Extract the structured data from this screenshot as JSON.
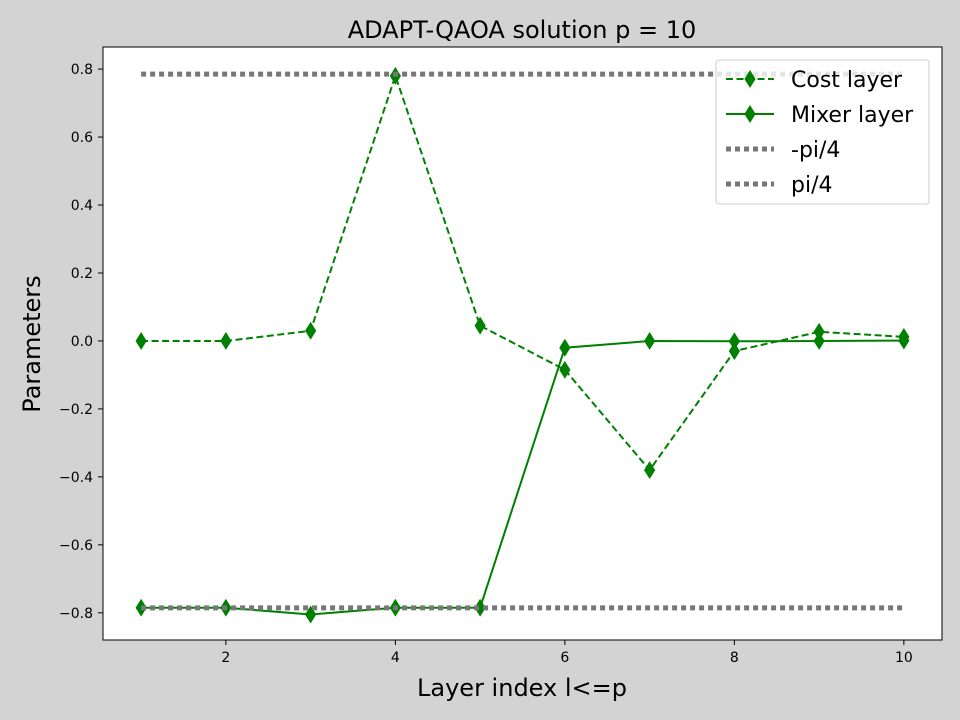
{
  "chart_data": {
    "type": "line",
    "title": "ADAPT-QAOA solution p = 10",
    "xlabel": "Layer index l<=p",
    "ylabel": "Parameters",
    "xlim": [
      0.55,
      10.45
    ],
    "ylim": [
      -0.88,
      0.865
    ],
    "xticks": [
      2,
      4,
      6,
      8,
      10
    ],
    "xtick_labels": [
      "2",
      "4",
      "6",
      "8",
      "10"
    ],
    "yticks": [
      0.8,
      0.6,
      0.4,
      0.2,
      0.0,
      -0.2,
      -0.4,
      -0.6,
      -0.8
    ],
    "ytick_labels": [
      "0.8",
      "0.6",
      "0.4",
      "0.2",
      "0.0",
      "−0.2",
      "−0.4",
      "−0.6",
      "−0.8"
    ],
    "grid": false,
    "legend_position": "top-right",
    "series": [
      {
        "name": "Cost layer",
        "style": "dashed",
        "marker": "thin-diamond",
        "color": "#008000",
        "x": [
          1,
          2,
          3,
          4,
          5,
          6,
          7,
          8,
          9,
          10
        ],
        "values": [
          0.0,
          0.0,
          0.03,
          0.78,
          0.045,
          -0.085,
          -0.38,
          -0.03,
          0.027,
          0.012
        ]
      },
      {
        "name": "Mixer layer",
        "style": "solid",
        "marker": "thin-diamond",
        "color": "#008000",
        "x": [
          1,
          2,
          3,
          4,
          5,
          6,
          7,
          8,
          9,
          10
        ],
        "values": [
          -0.785,
          -0.785,
          -0.805,
          -0.785,
          -0.785,
          -0.02,
          0.0,
          -0.001,
          0.0,
          0.001
        ]
      },
      {
        "name": "-pi/4",
        "style": "dotted",
        "marker": "none",
        "color": "#777777",
        "x": [
          1,
          10
        ],
        "values": [
          -0.785398,
          -0.785398
        ]
      },
      {
        "name": "pi/4",
        "style": "dotted",
        "marker": "none",
        "color": "#777777",
        "x": [
          1,
          10
        ],
        "values": [
          0.785398,
          0.785398
        ]
      }
    ]
  }
}
